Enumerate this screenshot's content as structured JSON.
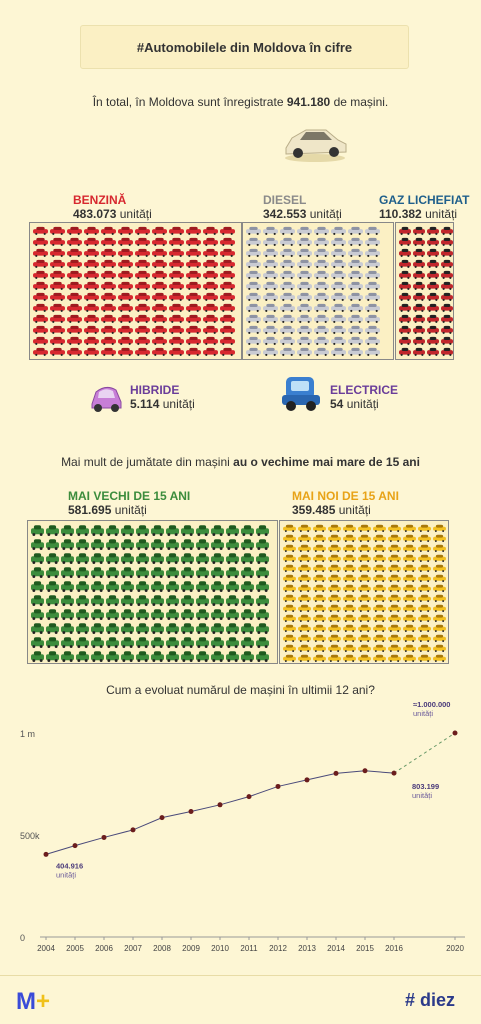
{
  "title": "#Automobilele din Moldova în cifre",
  "intro": {
    "prefix": "În total, în Moldova sunt înregistrate",
    "total": "941.180",
    "suffix": "de mașini."
  },
  "fuel": {
    "benzina": {
      "name": "BENZINĂ",
      "value": "483.073",
      "unit": "unități",
      "color": "#d7282f"
    },
    "diesel": {
      "name": "DIESEL",
      "value": "342.553",
      "unit": "unități",
      "color": "#8a8a8a"
    },
    "gaz": {
      "name": "GAZ LICHEFIAT",
      "value": "110.382",
      "unit": "unități",
      "color": "#1f5f8b"
    },
    "hibride": {
      "name": "HIBRIDE",
      "value": "5.114",
      "unit": "unități",
      "color": "#6a3d9a"
    },
    "electrice": {
      "name": "ELECTRICE",
      "value": "54",
      "unit": "unități",
      "color": "#6a3d9a"
    }
  },
  "age": {
    "headline_prefix": "Mai mult de jumătate din mașini",
    "headline_bold": "au o vechime mai mare de 15 ani",
    "old": {
      "name": "MAI VECHI DE 15 ANI",
      "value": "581.695",
      "unit": "unități",
      "color": "#3c8c3c"
    },
    "new": {
      "name": "MAI NOI DE 15 ANI",
      "value": "359.485",
      "unit": "unități",
      "color": "#e8a317"
    }
  },
  "evolution_question": "Cum a evoluat numărul de mașini în ultimii 12 ani?",
  "chart_data": {
    "type": "line",
    "title": "Cum a evoluat numărul de mașini în ultimii 12 ani?",
    "x": [
      2004,
      2005,
      2006,
      2007,
      2008,
      2009,
      2010,
      2011,
      2012,
      2013,
      2014,
      2015,
      2016,
      2020
    ],
    "values": [
      404916,
      448000,
      488000,
      525000,
      585000,
      615000,
      648000,
      688000,
      738000,
      770000,
      802000,
      815000,
      803199,
      1000000
    ],
    "ylim": [
      0,
      1000000
    ],
    "yticks": [
      {
        "value": 0,
        "label": "0"
      },
      {
        "value": 500000,
        "label": "500k"
      },
      {
        "value": 1000000,
        "label": "1 m"
      }
    ],
    "projection_from": 2016,
    "grid": false,
    "annotations": [
      {
        "x": 2004,
        "value": "404.916",
        "unit": "unități"
      },
      {
        "x": 2016,
        "value": "803.199",
        "unit": "unități"
      },
      {
        "x": 2020,
        "value": "≈1.000.000",
        "unit": "unități"
      }
    ],
    "line_color": "#4a4a7a",
    "point_color": "#6b1d1d"
  },
  "footer": {
    "left": "M",
    "left_plus": "+",
    "right": "# diez"
  }
}
